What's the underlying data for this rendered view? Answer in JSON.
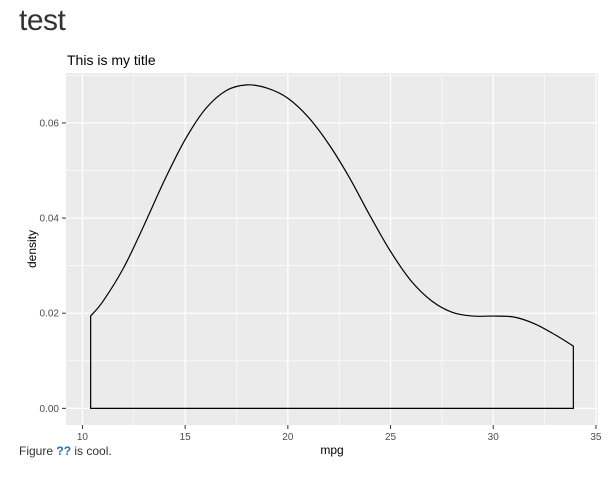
{
  "document": {
    "title": "test",
    "caption_before": "Figure ",
    "caption_ref": "??",
    "caption_after": " is cool."
  },
  "chart_data": {
    "type": "area",
    "title": "This is my title",
    "xlabel": "mpg",
    "ylabel": "density",
    "xlim": [
      9.2,
      35.1
    ],
    "ylim": [
      -0.0035,
      0.0705
    ],
    "x_ticks": [
      10,
      15,
      20,
      25,
      30,
      35
    ],
    "y_ticks": [
      0.0,
      0.02,
      0.04,
      0.06
    ],
    "x_tick_labels": [
      "10",
      "15",
      "20",
      "25",
      "30",
      "35"
    ],
    "y_tick_labels": [
      "0.00",
      "0.02",
      "0.04",
      "0.06"
    ],
    "grid": true,
    "panel_color": "#ebebeb",
    "grid_color": "#ffffff",
    "line_color": "#000000",
    "series": [
      {
        "x": [
          10.4,
          11,
          12,
          13,
          14,
          15,
          16,
          17,
          18,
          19,
          20,
          21,
          22,
          23,
          24,
          25,
          26,
          27,
          28,
          29,
          30,
          31,
          32,
          33,
          33.9
        ],
        "y": [
          0.0194,
          0.0225,
          0.0295,
          0.0385,
          0.048,
          0.0565,
          0.063,
          0.0668,
          0.068,
          0.0673,
          0.0652,
          0.0612,
          0.0555,
          0.0485,
          0.0405,
          0.033,
          0.0268,
          0.0226,
          0.0202,
          0.0194,
          0.0194,
          0.0192,
          0.0178,
          0.0155,
          0.0131
        ]
      }
    ]
  }
}
